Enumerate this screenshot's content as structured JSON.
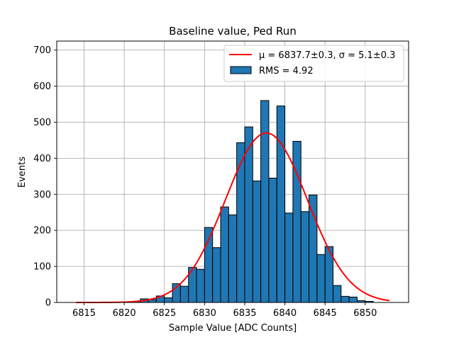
{
  "chart_data": {
    "type": "bar",
    "title": "Baseline value, Ped Run",
    "xlabel": "Sample Value [ADC Counts]",
    "ylabel": "Events",
    "xlim": [
      6811.6,
      6855.4
    ],
    "ylim": [
      0,
      725
    ],
    "xticks": [
      6815,
      6820,
      6825,
      6830,
      6835,
      6840,
      6845,
      6850
    ],
    "yticks": [
      0,
      100,
      200,
      300,
      400,
      500,
      600,
      700
    ],
    "grid": true,
    "legend_position": "top-right",
    "histogram": {
      "name": "RMS = 4.92",
      "color": "#1f77b4",
      "edgecolor": "#000000",
      "bins": [
        {
          "x0": 6821.0,
          "x1": 6822.0,
          "count": 2
        },
        {
          "x0": 6822.0,
          "x1": 6823.0,
          "count": 10
        },
        {
          "x0": 6823.0,
          "x1": 6824.0,
          "count": 8
        },
        {
          "x0": 6824.0,
          "x1": 6825.0,
          "count": 18
        },
        {
          "x0": 6825.0,
          "x1": 6826.0,
          "count": 13
        },
        {
          "x0": 6826.0,
          "x1": 6827.0,
          "count": 52
        },
        {
          "x0": 6827.0,
          "x1": 6828.0,
          "count": 45
        },
        {
          "x0": 6828.0,
          "x1": 6829.0,
          "count": 97
        },
        {
          "x0": 6829.0,
          "x1": 6830.0,
          "count": 92
        },
        {
          "x0": 6830.0,
          "x1": 6831.0,
          "count": 208
        },
        {
          "x0": 6831.0,
          "x1": 6832.0,
          "count": 152
        },
        {
          "x0": 6832.0,
          "x1": 6833.0,
          "count": 265
        },
        {
          "x0": 6833.0,
          "x1": 6834.0,
          "count": 243
        },
        {
          "x0": 6834.0,
          "x1": 6835.0,
          "count": 443
        },
        {
          "x0": 6835.0,
          "x1": 6836.0,
          "count": 487
        },
        {
          "x0": 6836.0,
          "x1": 6837.0,
          "count": 337
        },
        {
          "x0": 6837.0,
          "x1": 6838.0,
          "count": 560
        },
        {
          "x0": 6838.0,
          "x1": 6839.0,
          "count": 345
        },
        {
          "x0": 6839.0,
          "x1": 6840.0,
          "count": 545
        },
        {
          "x0": 6840.0,
          "x1": 6841.0,
          "count": 248
        },
        {
          "x0": 6841.0,
          "x1": 6842.0,
          "count": 447
        },
        {
          "x0": 6842.0,
          "x1": 6843.0,
          "count": 252
        },
        {
          "x0": 6843.0,
          "x1": 6844.0,
          "count": 298
        },
        {
          "x0": 6844.0,
          "x1": 6845.0,
          "count": 133
        },
        {
          "x0": 6845.0,
          "x1": 6846.0,
          "count": 155
        },
        {
          "x0": 6846.0,
          "x1": 6847.0,
          "count": 47
        },
        {
          "x0": 6847.0,
          "x1": 6848.0,
          "count": 17
        },
        {
          "x0": 6848.0,
          "x1": 6849.0,
          "count": 15
        },
        {
          "x0": 6849.0,
          "x1": 6850.0,
          "count": 5
        },
        {
          "x0": 6850.0,
          "x1": 6851.0,
          "count": 3
        }
      ]
    },
    "fit": {
      "name": "μ = 6837.7±0.3, σ = 5.1±0.3",
      "type": "gaussian",
      "color": "#ff0000",
      "mu": 6837.7,
      "sigma": 5.1,
      "amplitude": 470,
      "x_range": [
        6814,
        6853
      ]
    },
    "legend": [
      {
        "label": "μ = 6837.7±0.3, σ = 5.1±0.3",
        "kind": "line"
      },
      {
        "label": "RMS = 4.92",
        "kind": "patch"
      }
    ]
  }
}
